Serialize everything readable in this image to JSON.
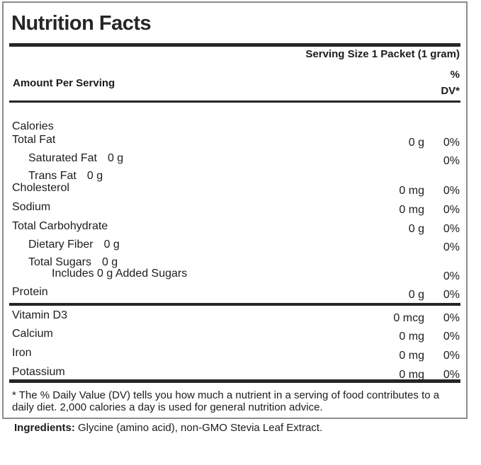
{
  "label": {
    "title": "Nutrition Facts",
    "serving_size": "Serving Size 1 Packet (1 gram)",
    "amount_per_serving": "Amount Per Serving",
    "dv_header_line1": "%",
    "dv_header_line2": "DV*",
    "rows": [
      {
        "label": "Calories",
        "amount": "",
        "dv": ""
      },
      {
        "label": "Total Fat",
        "amount": "0 g",
        "dv": "0%"
      },
      {
        "label": "Saturated Fat",
        "inline_amount": "0 g",
        "dv": "0%"
      },
      {
        "label": "Trans Fat",
        "inline_amount": "0 g",
        "dv": ""
      },
      {
        "label": "Cholesterol",
        "amount": "0 mg",
        "dv": "0%"
      },
      {
        "label": "Sodium",
        "amount": "0 mg",
        "dv": "0%"
      },
      {
        "label": "Total Carbohydrate",
        "amount": "0 g",
        "dv": "0%"
      },
      {
        "label": "Dietary Fiber",
        "inline_amount": "0 g",
        "dv": "0%"
      },
      {
        "label": "Total Sugars",
        "inline_amount": "0 g",
        "dv": ""
      },
      {
        "label": "Includes 0 g Added Sugars",
        "dv": "0%"
      },
      {
        "label": "Protein",
        "amount": "0 g",
        "dv": "0%"
      }
    ],
    "vitamins": [
      {
        "label": "Vitamin D3",
        "amount": "0 mcg",
        "dv": "0%"
      },
      {
        "label": "Calcium",
        "amount": "0 mg",
        "dv": "0%"
      },
      {
        "label": "Iron",
        "amount": "0 mg",
        "dv": "0%"
      },
      {
        "label": "Potassium",
        "amount": "0 mg",
        "dv": "0%"
      }
    ],
    "footnote": "* The % Daily Value (DV) tells you how much a nutrient in a serving of food contributes to a daily diet. 2,000 calories a day is used for general nutrition advice.",
    "colors": {
      "text": "#1c1c1c",
      "bar": "#262626",
      "border": "#8c8c8c"
    }
  },
  "ingredients": {
    "label": "Ingredients:",
    "text": " Glycine (amino acid), non-GMO Stevia Leaf Extract."
  }
}
